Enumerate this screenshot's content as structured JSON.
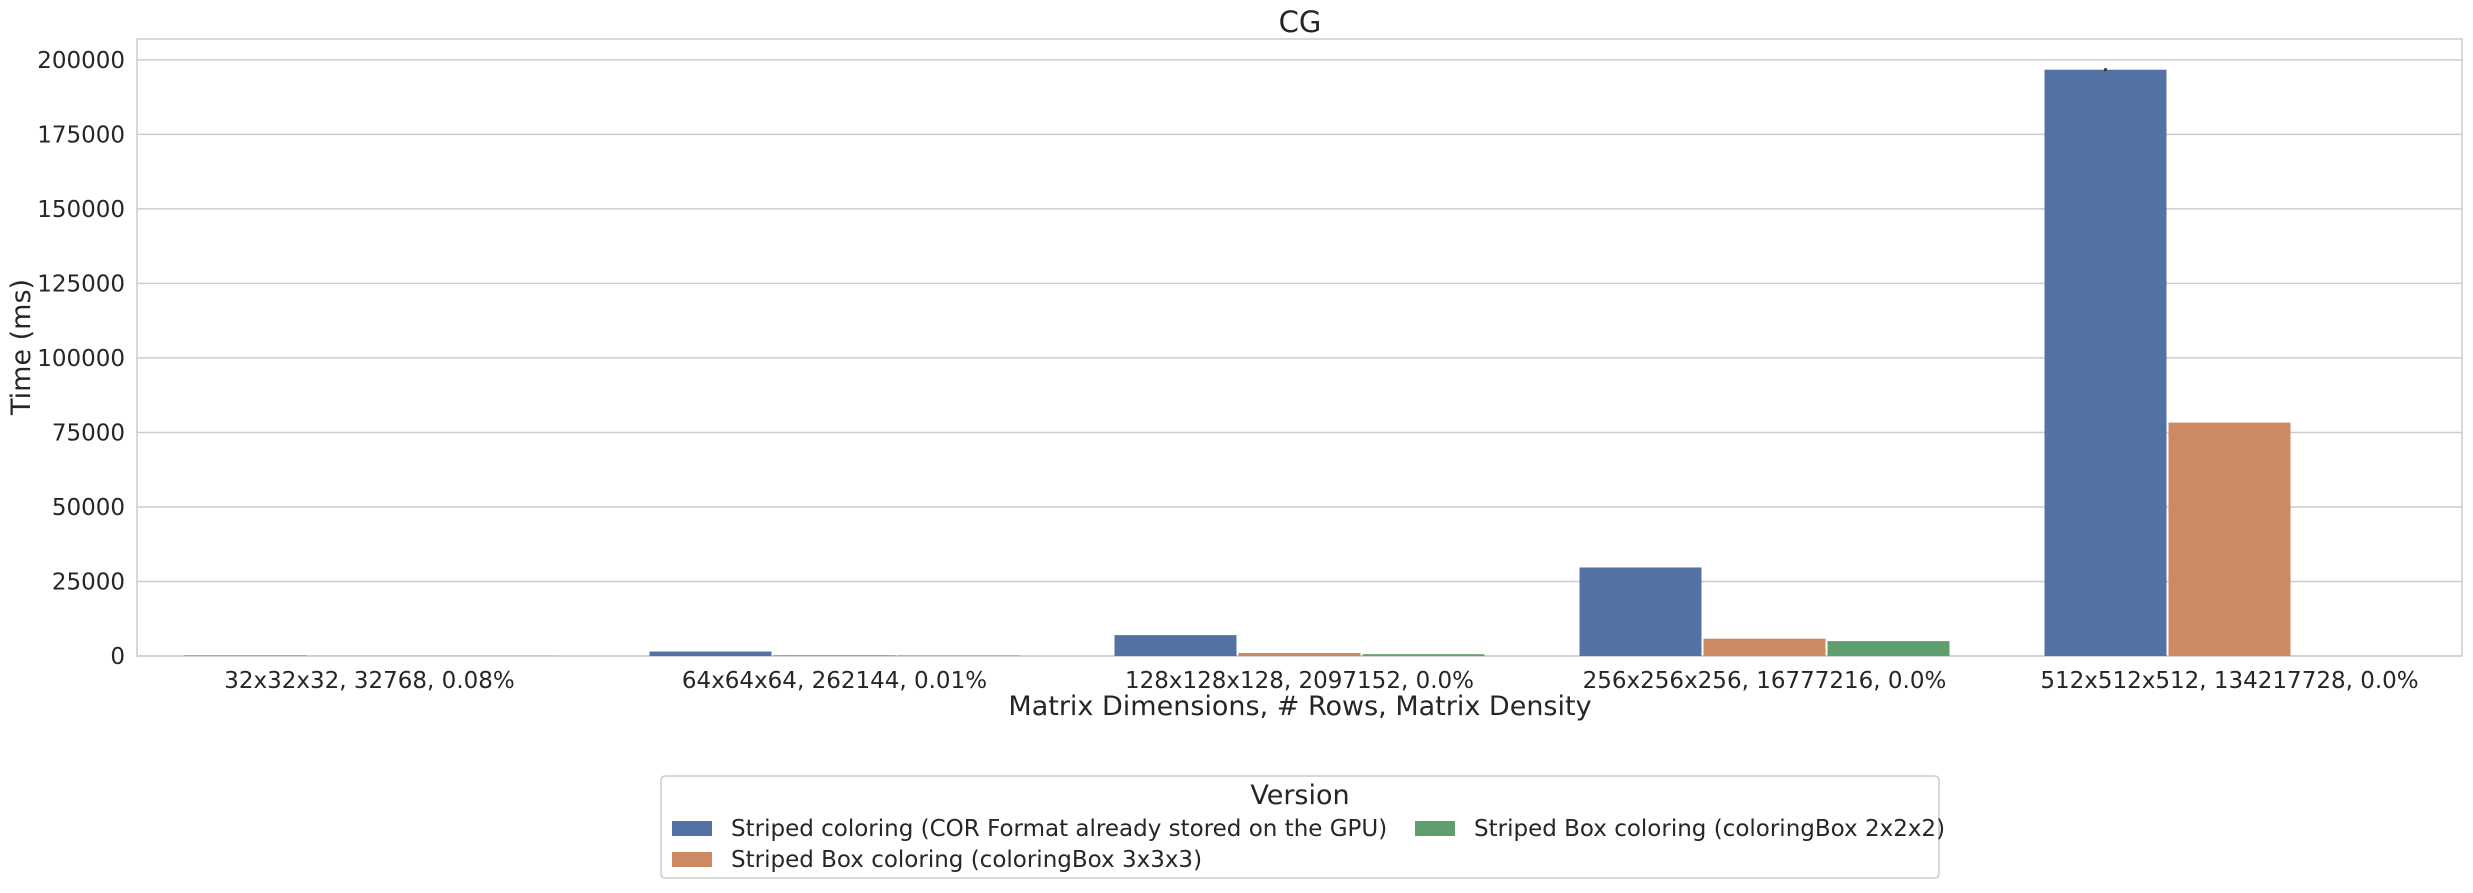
{
  "chart_data": {
    "type": "bar",
    "title": "CG",
    "xlabel": "Matrix Dimensions, # Rows, Matrix Density",
    "ylabel": "Time (ms)",
    "ylim": [
      0,
      207000
    ],
    "yticks": [
      0,
      25000,
      50000,
      75000,
      100000,
      125000,
      150000,
      175000,
      200000
    ],
    "ytick_labels": [
      "0",
      "25000",
      "50000",
      "75000",
      "100000",
      "125000",
      "150000",
      "175000",
      "200000"
    ],
    "grid": true,
    "categories": [
      "32x32x32, 32768, 0.08%",
      "64x64x64, 262144, 0.01%",
      "128x128x128, 2097152, 0.0%",
      "256x256x256, 16777216, 0.0%",
      "512x512x512, 134217728, 0.0%"
    ],
    "series": [
      {
        "name": "Striped coloring (COR Format already stored on the GPU)",
        "color": "#5471a3",
        "values": [
          150,
          1500,
          7000,
          29700,
          196700
        ]
      },
      {
        "name": "Striped Box coloring (coloringBox 3x3x3)",
        "color": "#cc8963",
        "values": [
          30,
          280,
          1000,
          5800,
          78300
        ]
      },
      {
        "name": "Striped Box coloring (coloringBox 2x2x2)",
        "color": "#5f9e6e",
        "values": [
          20,
          150,
          600,
          5000,
          0
        ]
      }
    ],
    "error_bars": [
      {
        "series": 0,
        "category": 4,
        "low": 196200,
        "high": 197200
      }
    ],
    "legend": {
      "title": "Version",
      "placement": "bottom-center",
      "columns": 2
    }
  }
}
